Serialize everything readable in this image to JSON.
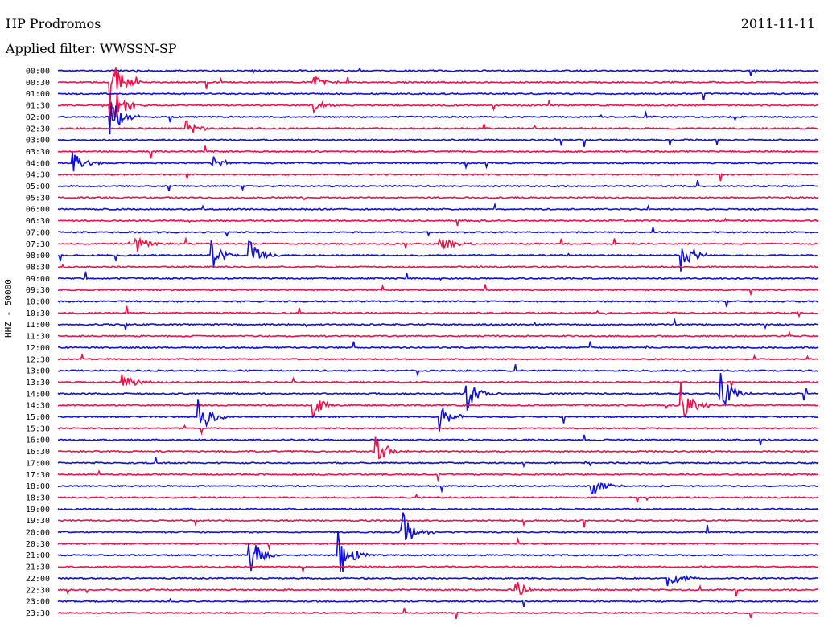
{
  "header": {
    "station": "HP Prodromos",
    "date": "2011-11-11",
    "filter": "Applied filter: WWSSN-SP"
  },
  "channel_label": "HHZ - 50000",
  "colors": {
    "even_row": "#1010d8",
    "odd_row": "#f0104a"
  },
  "chart_data": {
    "type": "line",
    "title": "HP Prodromos",
    "subtitle": "Applied filter: WWSSN-SP",
    "ylabel": "HHZ - 50000",
    "xlabel": "",
    "row_labels": [
      "00:00",
      "00:30",
      "01:00",
      "01:30",
      "02:00",
      "02:30",
      "03:00",
      "03:30",
      "04:00",
      "04:30",
      "05:00",
      "05:30",
      "06:00",
      "06:30",
      "07:00",
      "07:30",
      "08:00",
      "08:30",
      "09:00",
      "09:30",
      "10:00",
      "10:30",
      "11:00",
      "11:30",
      "12:00",
      "12:30",
      "13:00",
      "13:30",
      "14:00",
      "14:30",
      "15:00",
      "15:30",
      "16:00",
      "16:30",
      "17:00",
      "17:30",
      "18:00",
      "18:30",
      "19:00",
      "19:30",
      "20:00",
      "20:30",
      "21:00",
      "21:30",
      "22:00",
      "22:30",
      "23:00",
      "23:30"
    ],
    "row_minutes": 30,
    "events": [
      {
        "row": 1,
        "minute": 2,
        "amplitude": 1.0
      },
      {
        "row": 1,
        "minute": 10,
        "amplitude": 0.3
      },
      {
        "row": 3,
        "minute": 2,
        "amplitude": 1.0
      },
      {
        "row": 3,
        "minute": 10,
        "amplitude": 0.25
      },
      {
        "row": 4,
        "minute": 2,
        "amplitude": 0.8
      },
      {
        "row": 5,
        "minute": 5,
        "amplitude": 0.3
      },
      {
        "row": 8,
        "minute": 0.5,
        "amplitude": 0.5
      },
      {
        "row": 8,
        "minute": 6,
        "amplitude": 0.3
      },
      {
        "row": 15,
        "minute": 3,
        "amplitude": 0.4
      },
      {
        "row": 15,
        "minute": 15,
        "amplitude": 0.4
      },
      {
        "row": 16,
        "minute": 6,
        "amplitude": 0.6
      },
      {
        "row": 16,
        "minute": 7.5,
        "amplitude": 0.6
      },
      {
        "row": 16,
        "minute": 24.5,
        "amplitude": 0.7
      },
      {
        "row": 27,
        "minute": 2.5,
        "amplitude": 0.4
      },
      {
        "row": 28,
        "minute": 16,
        "amplitude": 0.7
      },
      {
        "row": 28,
        "minute": 26,
        "amplitude": 0.9
      },
      {
        "row": 29,
        "minute": 10,
        "amplitude": 0.4
      },
      {
        "row": 29,
        "minute": 24.5,
        "amplitude": 1.0
      },
      {
        "row": 30,
        "minute": 5.5,
        "amplitude": 0.8
      },
      {
        "row": 30,
        "minute": 15,
        "amplitude": 0.5
      },
      {
        "row": 33,
        "minute": 12.5,
        "amplitude": 0.6
      },
      {
        "row": 36,
        "minute": 21,
        "amplitude": 0.4
      },
      {
        "row": 40,
        "minute": 13.5,
        "amplitude": 0.8
      },
      {
        "row": 42,
        "minute": 7.5,
        "amplitude": 0.7
      },
      {
        "row": 42,
        "minute": 11,
        "amplitude": 1.0
      },
      {
        "row": 44,
        "minute": 24,
        "amplitude": 0.4
      },
      {
        "row": 45,
        "minute": 18,
        "amplitude": 0.4
      }
    ],
    "grid": false,
    "legend": "none"
  }
}
